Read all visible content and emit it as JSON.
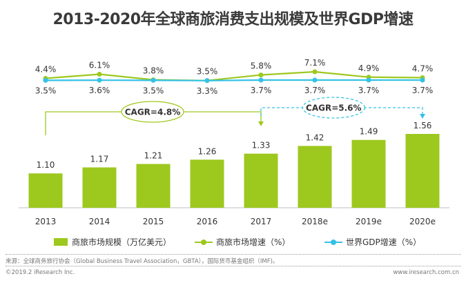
{
  "chart_data": {
    "type": "bar+line",
    "title": "2013-2020年全球商旅消费支出规模及世界GDP增速",
    "categories": [
      "2013",
      "2014",
      "2015",
      "2016",
      "2017",
      "2018e",
      "2019e",
      "2020e"
    ],
    "series": [
      {
        "name": "商旅市场规模（万亿美元）",
        "type": "bar",
        "values": [
          1.1,
          1.17,
          1.21,
          1.26,
          1.33,
          1.42,
          1.49,
          1.56
        ],
        "labels": [
          "1.10",
          "1.17",
          "1.21",
          "1.26",
          "1.33",
          "1.42",
          "1.49",
          "1.56"
        ],
        "color": "#9dc81e"
      },
      {
        "name": "商旅市场增速（%）",
        "type": "line",
        "values": [
          4.4,
          6.1,
          3.8,
          3.5,
          5.8,
          7.1,
          4.9,
          4.7
        ],
        "labels": [
          "4.4%",
          "6.1%",
          "3.8%",
          "3.5%",
          "5.8%",
          "7.1%",
          "4.9%",
          "4.7%"
        ],
        "color": "#9dc81e"
      },
      {
        "name": "世界GDP增速（%）",
        "type": "line",
        "values": [
          3.5,
          3.6,
          3.5,
          3.3,
          3.7,
          3.7,
          3.7,
          3.7
        ],
        "labels": [
          "3.5%",
          "3.6%",
          "3.5%",
          "3.3%",
          "3.7%",
          "3.7%",
          "3.7%",
          "3.7%"
        ],
        "color": "#33c2e6"
      }
    ],
    "annotations": [
      {
        "text": "CAGR=4.8%",
        "from": "2013",
        "to": "2017",
        "style": "solid",
        "color": "#9dc81e"
      },
      {
        "text": "CAGR=5.6%",
        "from": "2017",
        "to": "2020e",
        "style": "dashed",
        "color": "#33c2e6"
      }
    ],
    "legend_position": "bottom",
    "grid": false
  },
  "footer": {
    "source": "来源：全球商务旅行协会（Global Business Travel Association，GBTA），国际货币基金组织（IMF)。",
    "copyright": "©2019.2 iResearch Inc.",
    "website": "www.iresearch.com.cn"
  }
}
